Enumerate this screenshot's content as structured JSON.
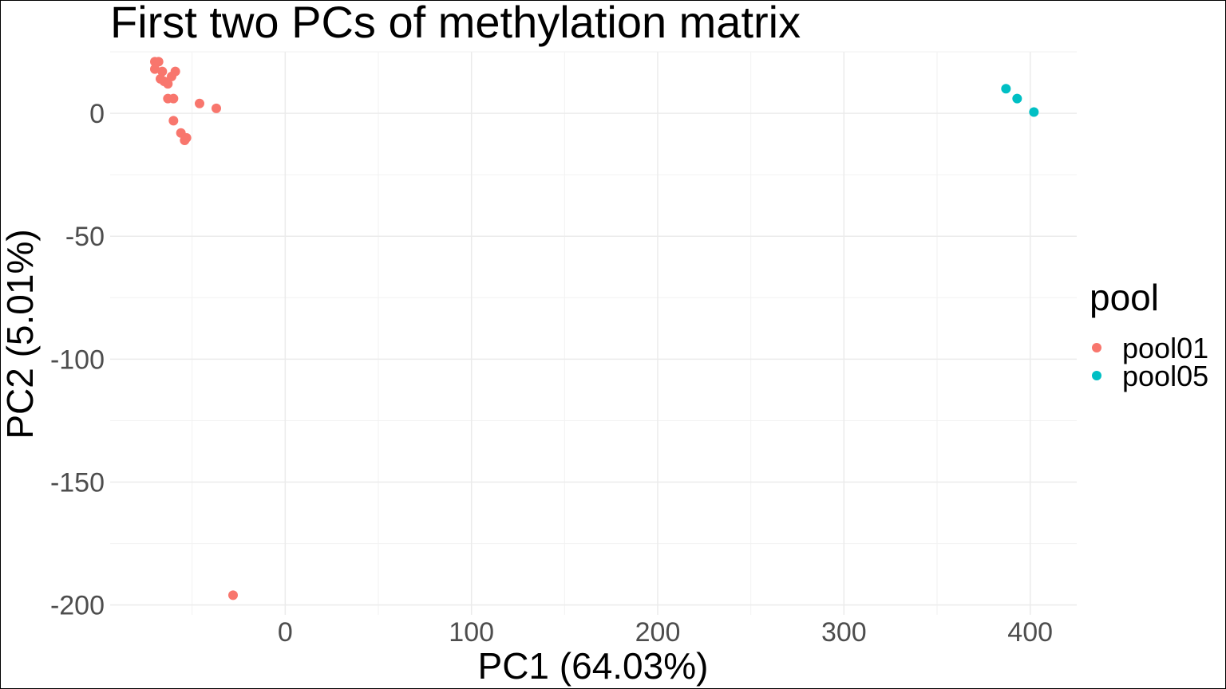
{
  "chart_data": {
    "type": "scatter",
    "title": "First two PCs of methylation matrix",
    "xlabel": "PC1 (64.03%)",
    "ylabel": "PC2 (5.01%)",
    "xlim": [
      -94,
      425
    ],
    "ylim": [
      -204,
      25
    ],
    "x_ticks": [
      0,
      100,
      200,
      300,
      400
    ],
    "y_ticks": [
      0,
      -50,
      -100,
      -150,
      -200
    ],
    "grid": true,
    "legend_position": "right",
    "legend_title": "pool",
    "series": [
      {
        "name": "pool01",
        "color": "#F8766D",
        "points": [
          {
            "x": -70,
            "y": 21
          },
          {
            "x": -68,
            "y": 21
          },
          {
            "x": -70,
            "y": 18
          },
          {
            "x": -66,
            "y": 17
          },
          {
            "x": -59,
            "y": 17
          },
          {
            "x": -61,
            "y": 15
          },
          {
            "x": -67,
            "y": 14
          },
          {
            "x": -65,
            "y": 13
          },
          {
            "x": -63,
            "y": 12
          },
          {
            "x": -63,
            "y": 6
          },
          {
            "x": -60,
            "y": 6
          },
          {
            "x": -46,
            "y": 4
          },
          {
            "x": -37,
            "y": 2
          },
          {
            "x": -60,
            "y": -3
          },
          {
            "x": -56,
            "y": -8
          },
          {
            "x": -53,
            "y": -10
          },
          {
            "x": -54,
            "y": -11
          },
          {
            "x": -28,
            "y": -196
          }
        ]
      },
      {
        "name": "pool05",
        "color": "#00BFC4",
        "points": [
          {
            "x": 387,
            "y": 10
          },
          {
            "x": 393,
            "y": 6
          },
          {
            "x": 402,
            "y": 0.5
          }
        ]
      }
    ]
  }
}
